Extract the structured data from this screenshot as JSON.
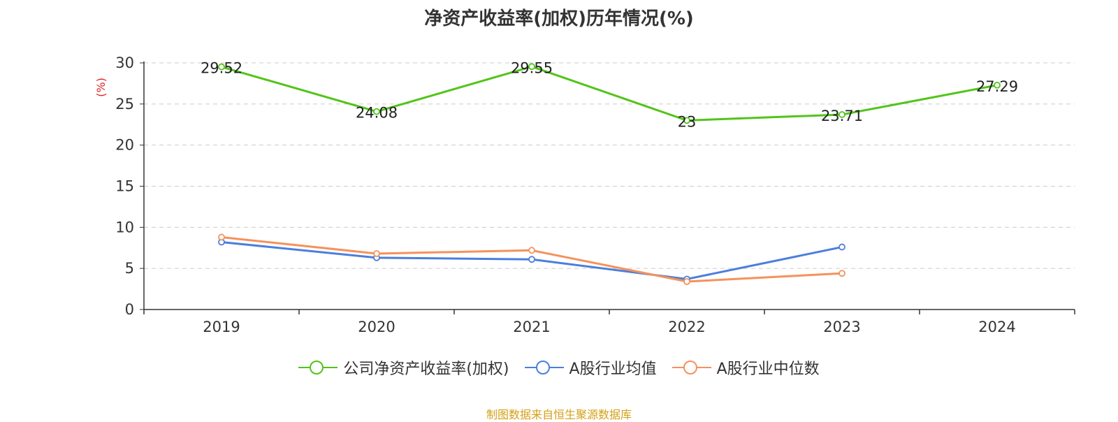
{
  "chart_data": {
    "type": "line",
    "title": "净资产收益率(加权)历年情况(%)",
    "ylabel": "(%)",
    "xlabel": "",
    "categories": [
      "2019",
      "2020",
      "2021",
      "2022",
      "2023",
      "2024"
    ],
    "ylim": [
      0,
      30
    ],
    "yticks": [
      0,
      5,
      10,
      15,
      20,
      25,
      30
    ],
    "grid": true,
    "legend_position": "bottom",
    "series": [
      {
        "name": "公司净资产收益率(加权)",
        "color": "#52c41a",
        "values": [
          29.52,
          24.08,
          29.55,
          23,
          23.71,
          27.29
        ],
        "labels": [
          "29.52",
          "24.08",
          "29.55",
          "23",
          "23.71",
          "27.29"
        ]
      },
      {
        "name": "A股行业均值",
        "color": "#4a7fdc",
        "values": [
          8.2,
          6.3,
          6.1,
          3.7,
          7.6,
          null
        ]
      },
      {
        "name": "A股行业中位数",
        "color": "#f4925c",
        "values": [
          8.8,
          6.8,
          7.2,
          3.4,
          4.4,
          null
        ]
      }
    ]
  },
  "source": "制图数据来自恒生聚源数据库"
}
